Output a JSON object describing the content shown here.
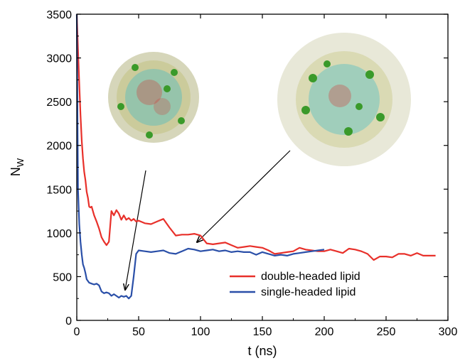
{
  "chart_data": {
    "type": "line",
    "xlabel": "t (ns)",
    "ylabel_main": "N",
    "ylabel_sub": "W",
    "xlim": [
      0,
      300
    ],
    "ylim": [
      0,
      3500
    ],
    "xticks": [
      0,
      50,
      100,
      150,
      200,
      250,
      300
    ],
    "yticks": [
      0,
      500,
      1000,
      1500,
      2000,
      2500,
      3000,
      3500
    ],
    "grid": false,
    "legend_position": "lower-right",
    "series": [
      {
        "name": "double-headed lipid",
        "color": "#e8302a",
        "x": [
          0,
          1,
          2,
          3,
          4,
          5,
          6,
          7,
          8,
          9,
          10,
          11,
          12,
          14,
          16,
          18,
          20,
          22,
          24,
          26,
          28,
          30,
          32,
          34,
          36,
          38,
          40,
          42,
          44,
          46,
          48,
          50,
          55,
          60,
          65,
          70,
          75,
          80,
          85,
          90,
          95,
          100,
          105,
          110,
          115,
          120,
          125,
          130,
          135,
          140,
          145,
          150,
          155,
          160,
          165,
          170,
          175,
          180,
          185,
          190,
          195,
          200,
          205,
          210,
          215,
          220,
          225,
          230,
          235,
          240,
          245,
          250,
          255,
          260,
          265,
          270,
          275,
          280,
          285,
          290
        ],
        "values": [
          3500,
          3100,
          2700,
          2350,
          2050,
          1850,
          1700,
          1600,
          1470,
          1400,
          1300,
          1290,
          1300,
          1200,
          1130,
          1050,
          950,
          900,
          860,
          900,
          1250,
          1200,
          1260,
          1220,
          1150,
          1200,
          1150,
          1170,
          1140,
          1160,
          1130,
          1140,
          1110,
          1100,
          1130,
          1160,
          1060,
          970,
          980,
          980,
          990,
          970,
          880,
          870,
          880,
          890,
          860,
          830,
          840,
          850,
          840,
          830,
          800,
          760,
          770,
          780,
          790,
          830,
          810,
          800,
          790,
          790,
          810,
          790,
          770,
          820,
          810,
          790,
          760,
          690,
          730,
          730,
          720,
          760,
          760,
          740,
          770,
          740,
          740,
          740
        ]
      },
      {
        "name": "single-headed lipid",
        "color": "#2a4fa8",
        "x": [
          0,
          1,
          2,
          3,
          4,
          5,
          6,
          7,
          8,
          9,
          10,
          12,
          14,
          16,
          18,
          20,
          22,
          24,
          26,
          28,
          30,
          32,
          34,
          36,
          38,
          40,
          42,
          44,
          46,
          48,
          50,
          55,
          60,
          65,
          70,
          75,
          80,
          85,
          90,
          95,
          100,
          105,
          110,
          115,
          120,
          125,
          130,
          135,
          140,
          145,
          150,
          155,
          160,
          165,
          170,
          175,
          180,
          185,
          190,
          195,
          200
        ],
        "values": [
          3500,
          1500,
          1100,
          900,
          750,
          640,
          600,
          540,
          470,
          450,
          430,
          420,
          410,
          420,
          400,
          330,
          310,
          320,
          310,
          280,
          300,
          280,
          260,
          280,
          270,
          280,
          250,
          280,
          500,
          760,
          800,
          790,
          780,
          790,
          800,
          770,
          760,
          790,
          820,
          810,
          790,
          800,
          810,
          790,
          800,
          780,
          790,
          780,
          780,
          750,
          780,
          760,
          740,
          750,
          740,
          760,
          770,
          780,
          790,
          800,
          810
        ]
      }
    ]
  }
}
